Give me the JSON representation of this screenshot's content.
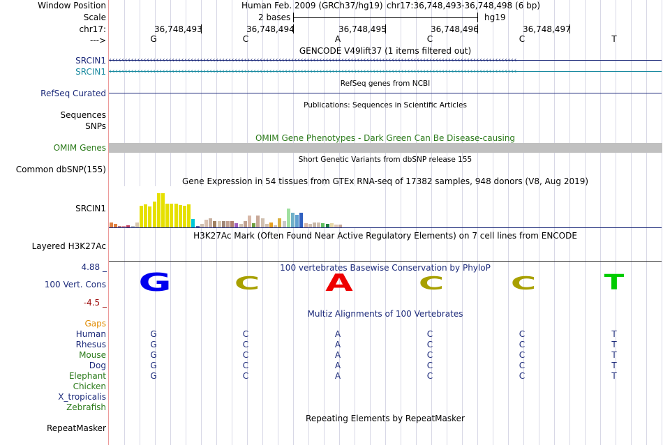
{
  "header": {
    "window_position_label": "Window Position",
    "assembly": "Human Feb. 2009 (GRCh37/hg19)",
    "position": "chr17:36,748,493-36,748,498 (6 bp)",
    "scale_label": "Scale",
    "scale_value": "2 bases",
    "scale_db": "hg19",
    "chrom_label": "chr17:",
    "strand_label": "--->",
    "coordinates": [
      "36,748,493",
      "36,748,494",
      "36,748,495",
      "36,748,496",
      "36,748,497"
    ],
    "bases": [
      "G",
      "C",
      "A",
      "C",
      "C",
      "T"
    ]
  },
  "tracks": {
    "gencode_title": "GENCODE V49lift37 (1 items filtered out)",
    "gene_labels": [
      "SRCIN1",
      "SRCIN1"
    ],
    "refseq_title": "RefSeq genes from NCBI",
    "refseq_label": "RefSeq Curated",
    "publications_title": "Publications: Sequences in Scientific Articles",
    "sequences_label": "Sequences",
    "snps_label": "SNPs",
    "omim_title": "OMIM Gene Phenotypes - Dark Green Can Be Disease-causing",
    "omim_label": "OMIM Genes",
    "dbsnp_title": "Short Genetic Variants from dbSNP release 155",
    "dbsnp_label": "Common dbSNP(155)",
    "gtex_title": "Gene Expression in 54 tissues from GTEx RNA-seq of 17382 samples, 948 donors (V8, Aug 2019)",
    "gtex_label": "SRCIN1",
    "h3k27ac_title": "H3K27Ac Mark (Often Found Near Active Regulatory Elements) on 7 cell lines from ENCODE",
    "h3k27ac_label": "Layered H3K27Ac",
    "cons_title": "100 vertebrates Basewise Conservation by PhyloP",
    "cons_label": "100 Vert. Cons",
    "cons_max": "4.88 _",
    "cons_min": "-4.5 _",
    "multiz_title": "Multiz Alignments of 100 Vertebrates",
    "gaps_label": "Gaps",
    "repeat_title": "Repeating Elements by RepeatMasker",
    "repeat_label": "RepeatMasker"
  },
  "species": [
    {
      "name": "Human",
      "bases": [
        "G",
        "C",
        "A",
        "C",
        "C",
        "T"
      ]
    },
    {
      "name": "Rhesus",
      "bases": [
        "G",
        "C",
        "A",
        "C",
        "C",
        "T"
      ]
    },
    {
      "name": "Mouse",
      "bases": [
        "G",
        "C",
        "A",
        "C",
        "C",
        "T"
      ]
    },
    {
      "name": "Dog",
      "bases": [
        "G",
        "C",
        "A",
        "C",
        "C",
        "T"
      ]
    },
    {
      "name": "Elephant",
      "bases": [
        "G",
        "C",
        "A",
        "C",
        "C",
        "T"
      ]
    },
    {
      "name": "Chicken",
      "bases": []
    },
    {
      "name": "X_tropicalis",
      "bases": []
    },
    {
      "name": "Zebrafish",
      "bases": []
    }
  ],
  "gtex_values": [
    {
      "color": "#e08040",
      "value": 0.12
    },
    {
      "color": "#e08040",
      "value": 0.08
    },
    {
      "color": "#c08080",
      "value": 0.03
    },
    {
      "color": "#e090a0",
      "value": 0.04
    },
    {
      "color": "#c04060",
      "value": 0.05
    },
    {
      "color": "#c0c0c0",
      "value": 0.03
    },
    {
      "color": "#d8c8b0",
      "value": 0.12
    },
    {
      "color": "#e6e000",
      "value": 0.52
    },
    {
      "color": "#e6e000",
      "value": 0.56
    },
    {
      "color": "#e6e000",
      "value": 0.5
    },
    {
      "color": "#e6e000",
      "value": 0.62
    },
    {
      "color": "#e6e000",
      "value": 0.83
    },
    {
      "color": "#e6e000",
      "value": 0.83
    },
    {
      "color": "#e6e000",
      "value": 0.58
    },
    {
      "color": "#e6e000",
      "value": 0.58
    },
    {
      "color": "#e6e000",
      "value": 0.58
    },
    {
      "color": "#e6e000",
      "value": 0.55
    },
    {
      "color": "#e6e000",
      "value": 0.52
    },
    {
      "color": "#e6e000",
      "value": 0.56
    },
    {
      "color": "#00c8d8",
      "value": 0.2
    },
    {
      "color": "#6060a0",
      "value": 0.03
    },
    {
      "color": "#d0c0b0",
      "value": 0.08
    },
    {
      "color": "#d8c0b0",
      "value": 0.18
    },
    {
      "color": "#c8b0a0",
      "value": 0.22
    },
    {
      "color": "#a08060",
      "value": 0.15
    },
    {
      "color": "#d8c8b0",
      "value": 0.15
    },
    {
      "color": "#a08878",
      "value": 0.15
    },
    {
      "color": "#c0a090",
      "value": 0.16
    },
    {
      "color": "#b08070",
      "value": 0.16
    },
    {
      "color": "#a060c0",
      "value": 0.1
    },
    {
      "color": "#d0c0b0",
      "value": 0.08
    },
    {
      "color": "#c0a090",
      "value": 0.15
    },
    {
      "color": "#d8b8a8",
      "value": 0.28
    },
    {
      "color": "#70a040",
      "value": 0.1
    },
    {
      "color": "#c8a898",
      "value": 0.28
    },
    {
      "color": "#d0c0b0",
      "value": 0.22
    },
    {
      "color": "#d0c0b0",
      "value": 0.08
    },
    {
      "color": "#e6a020",
      "value": 0.12
    },
    {
      "color": "#d0c0b0",
      "value": 0.05
    },
    {
      "color": "#d8b040",
      "value": 0.22
    },
    {
      "color": "#c8c8c8",
      "value": 0.15
    },
    {
      "color": "#a0e0a0",
      "value": 0.45
    },
    {
      "color": "#70b0c8",
      "value": 0.36
    },
    {
      "color": "#60a0d0",
      "value": 0.3
    },
    {
      "color": "#3060c0",
      "value": 0.35
    },
    {
      "color": "#d8b8a8",
      "value": 0.1
    },
    {
      "color": "#d0c0b0",
      "value": 0.08
    },
    {
      "color": "#c8b8a8",
      "value": 0.12
    },
    {
      "color": "#d0c0b0",
      "value": 0.12
    },
    {
      "color": "#60c060",
      "value": 0.1
    },
    {
      "color": "#208040",
      "value": 0.08
    },
    {
      "color": "#e8d8a8",
      "value": 0.1
    },
    {
      "color": "#e0c8b8",
      "value": 0.06
    },
    {
      "color": "#c8a898",
      "value": 0.06
    }
  ],
  "colors": {
    "gene_dark": "#1c2a7a",
    "gene_teal": "#1a8aa0",
    "omim_green": "#2b7a1a",
    "guide": "#d8d8e6",
    "omim_bar": "#c0c0c0",
    "base_G": "#0000ee",
    "base_C": "#a8a000",
    "base_A": "#ee0000",
    "base_T": "#00cc00",
    "gaps_orange": "#e08a00",
    "axis_red": "#a01010"
  }
}
